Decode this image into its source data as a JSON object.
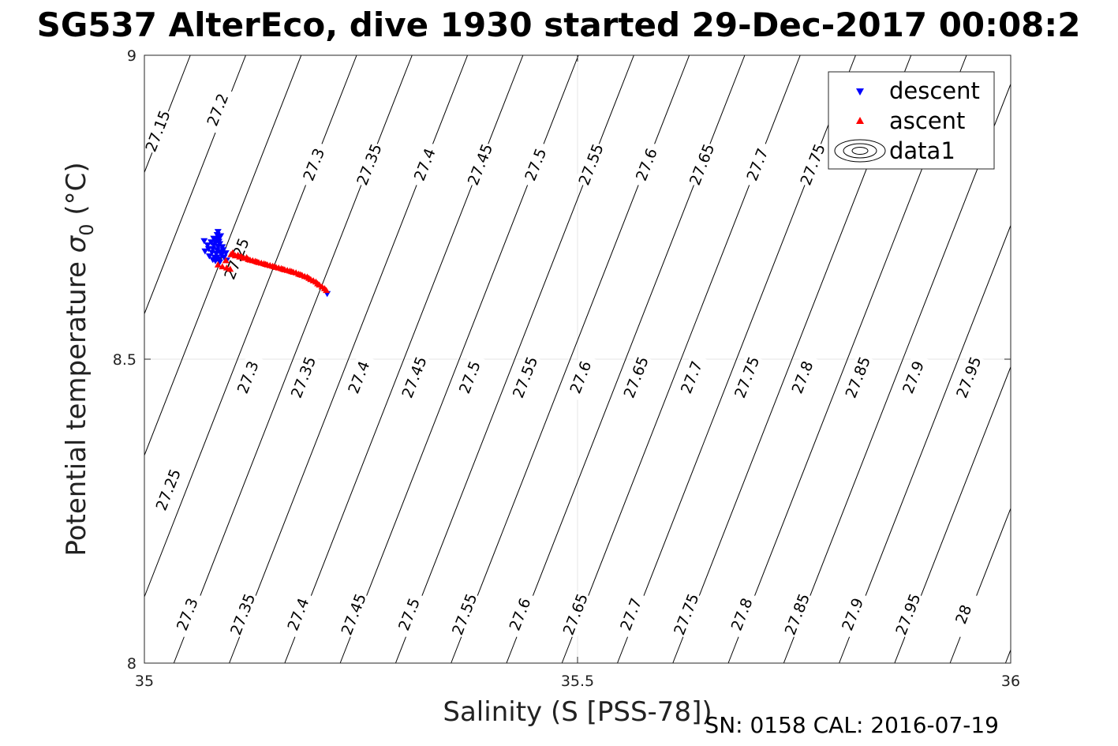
{
  "chart_data": {
    "type": "scatter",
    "title": "SG537 AlterEco, dive 1930 started 29-Dec-2017 00:08:2",
    "xlabel": "Salinity (S [PSS-78])",
    "ylabel_main": "Potential temperature ",
    "ylabel_sigma": "σ",
    "ylabel_sub": "0",
    "ylabel_unit": " (°C)",
    "footer": "SN: 0158  CAL: 2016-07-19",
    "xlim": [
      35,
      36
    ],
    "ylim": [
      8,
      9
    ],
    "x_ticks": [
      35,
      35.5,
      36
    ],
    "x_tick_labels": [
      "35",
      "35.5",
      "36"
    ],
    "y_ticks": [
      8,
      8.5,
      9
    ],
    "y_tick_labels": [
      "8",
      "8.5",
      "9"
    ],
    "grid": true,
    "legend_position": "top-right",
    "legend": [
      {
        "label": "descent",
        "marker": "triangle-down",
        "color": "#0000ff"
      },
      {
        "label": "ascent",
        "marker": "triangle-up",
        "color": "#ff0000"
      },
      {
        "label": "data1",
        "marker": "contour",
        "color": "#000000"
      }
    ],
    "contours": [
      {
        "level": 27.15,
        "label": "27.15"
      },
      {
        "level": 27.2,
        "label": "27.2"
      },
      {
        "level": 27.25,
        "label": "27.25"
      },
      {
        "level": 27.3,
        "label": "27.3"
      },
      {
        "level": 27.35,
        "label": "27.35"
      },
      {
        "level": 27.4,
        "label": "27.4"
      },
      {
        "level": 27.45,
        "label": "27.45"
      },
      {
        "level": 27.5,
        "label": "27.5"
      },
      {
        "level": 27.55,
        "label": "27.55"
      },
      {
        "level": 27.6,
        "label": "27.6"
      },
      {
        "level": 27.65,
        "label": "27.65"
      },
      {
        "level": 27.7,
        "label": "27.7"
      },
      {
        "level": 27.75,
        "label": "27.75"
      },
      {
        "level": 27.8,
        "label": "27.8"
      },
      {
        "level": 27.85,
        "label": "27.85"
      },
      {
        "level": 27.9,
        "label": "27.9"
      },
      {
        "level": 27.95,
        "label": "27.95"
      },
      {
        "level": 28.0,
        "label": "28"
      }
    ],
    "contour_labels": [
      {
        "text": "27.15",
        "S": 35.016,
        "T": 8.875
      },
      {
        "text": "27.2",
        "S": 35.085,
        "T": 8.91
      },
      {
        "text": "27.3",
        "S": 35.196,
        "T": 8.82
      },
      {
        "text": "27.35",
        "S": 35.26,
        "T": 8.82
      },
      {
        "text": "27.4",
        "S": 35.324,
        "T": 8.82
      },
      {
        "text": "27.45",
        "S": 35.388,
        "T": 8.82
      },
      {
        "text": "27.5",
        "S": 35.452,
        "T": 8.82
      },
      {
        "text": "27.55",
        "S": 35.516,
        "T": 8.82
      },
      {
        "text": "27.6",
        "S": 35.58,
        "T": 8.82
      },
      {
        "text": "27.65",
        "S": 35.644,
        "T": 8.82
      },
      {
        "text": "27.7",
        "S": 35.708,
        "T": 8.82
      },
      {
        "text": "27.75",
        "S": 35.772,
        "T": 8.82
      },
      {
        "text": "27.25",
        "S": 35.107,
        "T": 8.665
      },
      {
        "text": "27.3",
        "S": 35.12,
        "T": 8.47
      },
      {
        "text": "27.35",
        "S": 35.184,
        "T": 8.47
      },
      {
        "text": "27.4",
        "S": 35.248,
        "T": 8.47
      },
      {
        "text": "27.45",
        "S": 35.312,
        "T": 8.47
      },
      {
        "text": "27.5",
        "S": 35.376,
        "T": 8.47
      },
      {
        "text": "27.55",
        "S": 35.44,
        "T": 8.47
      },
      {
        "text": "27.6",
        "S": 35.504,
        "T": 8.47
      },
      {
        "text": "27.65",
        "S": 35.568,
        "T": 8.47
      },
      {
        "text": "27.7",
        "S": 35.632,
        "T": 8.47
      },
      {
        "text": "27.75",
        "S": 35.696,
        "T": 8.47
      },
      {
        "text": "27.8",
        "S": 35.76,
        "T": 8.47
      },
      {
        "text": "27.85",
        "S": 35.824,
        "T": 8.47
      },
      {
        "text": "27.9",
        "S": 35.888,
        "T": 8.47
      },
      {
        "text": "27.95",
        "S": 35.952,
        "T": 8.47
      },
      {
        "text": "27.25",
        "S": 35.028,
        "T": 8.285
      },
      {
        "text": "27.3",
        "S": 35.05,
        "T": 8.08
      },
      {
        "text": "27.35",
        "S": 35.114,
        "T": 8.08
      },
      {
        "text": "27.4",
        "S": 35.178,
        "T": 8.08
      },
      {
        "text": "27.45",
        "S": 35.242,
        "T": 8.08
      },
      {
        "text": "27.5",
        "S": 35.306,
        "T": 8.08
      },
      {
        "text": "27.55",
        "S": 35.37,
        "T": 8.08
      },
      {
        "text": "27.6",
        "S": 35.434,
        "T": 8.08
      },
      {
        "text": "27.65",
        "S": 35.498,
        "T": 8.08
      },
      {
        "text": "27.7",
        "S": 35.562,
        "T": 8.08
      },
      {
        "text": "27.75",
        "S": 35.626,
        "T": 8.08
      },
      {
        "text": "27.8",
        "S": 35.69,
        "T": 8.08
      },
      {
        "text": "27.85",
        "S": 35.754,
        "T": 8.08
      },
      {
        "text": "27.9",
        "S": 35.818,
        "T": 8.08
      },
      {
        "text": "27.95",
        "S": 35.882,
        "T": 8.08
      },
      {
        "text": "28",
        "S": 35.946,
        "T": 8.08
      }
    ],
    "series": [
      {
        "name": "descent",
        "marker": "triangle-down",
        "color": "#0000ff",
        "points": [
          [
            35.069,
            8.695
          ],
          [
            35.085,
            8.71
          ],
          [
            35.084,
            8.705
          ],
          [
            35.086,
            8.7
          ],
          [
            35.083,
            8.698
          ],
          [
            35.088,
            8.703
          ],
          [
            35.082,
            8.692
          ],
          [
            35.087,
            8.69
          ],
          [
            35.08,
            8.688
          ],
          [
            35.085,
            8.686
          ],
          [
            35.079,
            8.682
          ],
          [
            35.084,
            8.68
          ],
          [
            35.09,
            8.685
          ],
          [
            35.078,
            8.676
          ],
          [
            35.083,
            8.674
          ],
          [
            35.089,
            8.672
          ],
          [
            35.075,
            8.67
          ],
          [
            35.081,
            8.668
          ],
          [
            35.086,
            8.665
          ],
          [
            35.091,
            8.68
          ],
          [
            35.094,
            8.675
          ],
          [
            35.073,
            8.688
          ],
          [
            35.077,
            8.693
          ],
          [
            35.08,
            8.699
          ],
          [
            35.086,
            8.694
          ],
          [
            35.082,
            8.662
          ],
          [
            35.087,
            8.66
          ],
          [
            35.084,
            8.668
          ],
          [
            35.079,
            8.664
          ],
          [
            35.092,
            8.668
          ],
          [
            35.095,
            8.663
          ],
          [
            35.07,
            8.678
          ],
          [
            35.074,
            8.682
          ],
          [
            35.088,
            8.677
          ],
          [
            35.211,
            8.608
          ]
        ]
      },
      {
        "name": "ascent",
        "marker": "triangle-up",
        "color": "#ff0000",
        "points": [
          [
            35.085,
            8.655
          ],
          [
            35.09,
            8.652
          ],
          [
            35.095,
            8.65
          ],
          [
            35.099,
            8.648
          ],
          [
            35.094,
            8.662
          ],
          [
            35.1,
            8.672
          ],
          [
            35.105,
            8.67
          ],
          [
            35.11,
            8.668
          ],
          [
            35.115,
            8.666
          ],
          [
            35.12,
            8.664
          ],
          [
            35.125,
            8.662
          ],
          [
            35.13,
            8.66
          ],
          [
            35.135,
            8.658
          ],
          [
            35.14,
            8.656
          ],
          [
            35.145,
            8.654
          ],
          [
            35.15,
            8.652
          ],
          [
            35.155,
            8.65
          ],
          [
            35.16,
            8.648
          ],
          [
            35.165,
            8.646
          ],
          [
            35.17,
            8.644
          ],
          [
            35.175,
            8.642
          ],
          [
            35.18,
            8.639
          ],
          [
            35.185,
            8.636
          ],
          [
            35.19,
            8.633
          ],
          [
            35.195,
            8.629
          ],
          [
            35.2,
            8.624
          ],
          [
            35.205,
            8.619
          ],
          [
            35.21,
            8.613
          ],
          [
            35.102,
            8.675
          ],
          [
            35.108,
            8.671
          ],
          [
            35.112,
            8.669
          ],
          [
            35.118,
            8.667
          ],
          [
            35.122,
            8.663
          ],
          [
            35.128,
            8.661
          ],
          [
            35.132,
            8.659
          ],
          [
            35.138,
            8.657
          ],
          [
            35.142,
            8.655
          ],
          [
            35.148,
            8.653
          ],
          [
            35.152,
            8.651
          ],
          [
            35.158,
            8.649
          ],
          [
            35.162,
            8.647
          ],
          [
            35.168,
            8.645
          ],
          [
            35.172,
            8.643
          ],
          [
            35.178,
            8.64
          ],
          [
            35.182,
            8.638
          ],
          [
            35.188,
            8.635
          ],
          [
            35.192,
            8.631
          ],
          [
            35.198,
            8.627
          ],
          [
            35.202,
            8.622
          ],
          [
            35.208,
            8.616
          ]
        ]
      }
    ]
  }
}
